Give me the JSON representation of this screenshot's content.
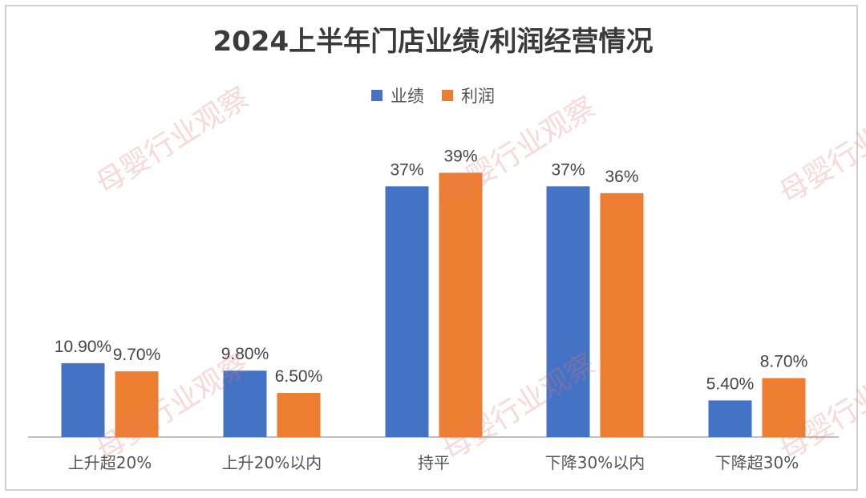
{
  "chart_data": {
    "type": "bar",
    "title": "2024上半年门店业绩/利润经营情况",
    "categories": [
      "上升超20%",
      "上升20%以内",
      "持平",
      "下降30%以内",
      "下降超30%"
    ],
    "series": [
      {
        "name": "业绩",
        "color": "#4472C4",
        "values": [
          10.9,
          9.8,
          37,
          37,
          5.4
        ],
        "labels": [
          "10.90%",
          "9.80%",
          "37%",
          "37%",
          "5.40%"
        ]
      },
      {
        "name": "利润",
        "color": "#ED7D31",
        "values": [
          9.7,
          6.5,
          39,
          36,
          8.7
        ],
        "labels": [
          "9.70%",
          "6.50%",
          "39%",
          "36%",
          "8.70%"
        ]
      }
    ],
    "legend_position": "top-center",
    "grid": false
  },
  "watermark": "母婴行业观察"
}
